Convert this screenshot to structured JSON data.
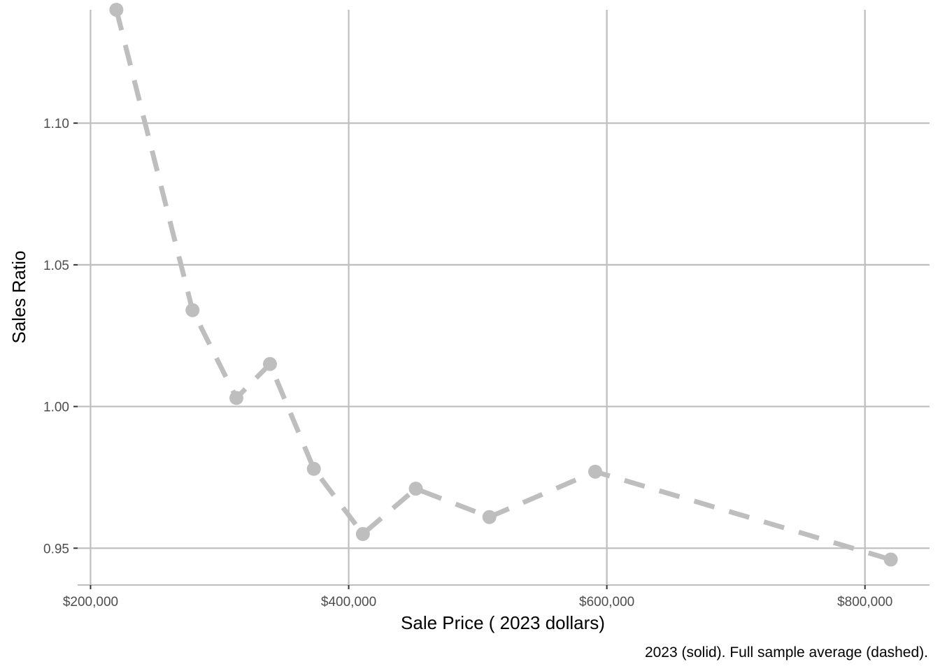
{
  "chart_data": {
    "type": "line",
    "xlabel": "Sale Price ( 2023 dollars)",
    "ylabel": "Sales Ratio",
    "caption": "2023 (solid). Full sample average (dashed).",
    "xlim": [
      190000,
      850000
    ],
    "ylim": [
      0.937,
      1.14
    ],
    "x_ticks": [
      200000,
      400000,
      600000,
      800000
    ],
    "x_tick_labels": [
      "$200,000",
      "$400,000",
      "$600,000",
      "$800,000"
    ],
    "y_ticks": [
      0.95,
      1.0,
      1.05,
      1.1
    ],
    "y_tick_labels": [
      "0.95",
      "1.00",
      "1.05",
      "1.10"
    ],
    "grid": true,
    "series": [
      {
        "line_style": "dashed",
        "color": "#bebebe",
        "x": [
          220000,
          279000,
          313000,
          339000,
          373000,
          411000,
          452000,
          509000,
          591000,
          820000
        ],
        "y": [
          1.14,
          1.034,
          1.003,
          1.015,
          0.978,
          0.955,
          0.971,
          0.961,
          0.977,
          0.946
        ]
      }
    ]
  }
}
